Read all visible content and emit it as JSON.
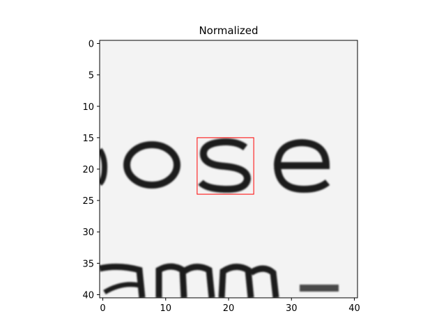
{
  "chart_data": {
    "type": "heatmap",
    "title": "Normalized",
    "colormap": "gray",
    "image_shape": [
      41,
      41
    ],
    "xlim": [
      -0.5,
      40.5
    ],
    "ylim": [
      40.5,
      -0.5
    ],
    "x_ticks": [
      0,
      10,
      20,
      30,
      40
    ],
    "y_ticks": [
      0,
      5,
      10,
      15,
      20,
      25,
      30,
      35,
      40
    ],
    "content": "grayscale crop of printed text: letters 'o', 's', 'e' in the middle row and the tops of 'a', 'm', 'm' along the bottom edge",
    "highlight_box": {
      "x0": 15,
      "y0": 15,
      "x1": 24,
      "y1": 24,
      "color": "#ff0000"
    }
  }
}
